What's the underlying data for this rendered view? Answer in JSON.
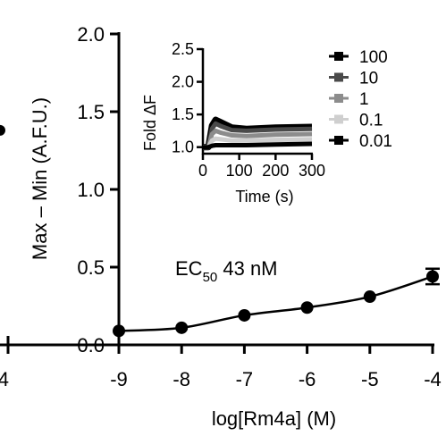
{
  "chart_data": [
    {
      "type": "scatter",
      "title": "",
      "xlabel": "log[Rm4a] (M)",
      "ylabel": "Max – Min (A.F.U.)",
      "xlim": [
        -9,
        -4
      ],
      "ylim": [
        0,
        2.0
      ],
      "x_ticks": [
        "-9",
        "-8",
        "-7",
        "-6",
        "-5",
        "-4"
      ],
      "y_ticks": [
        "0.0",
        "0.5",
        "1.0",
        "1.5",
        "2.0"
      ],
      "points": [
        {
          "x": -9,
          "y": 0.09,
          "err": 0
        },
        {
          "x": -8,
          "y": 0.11,
          "err": 0
        },
        {
          "x": -7,
          "y": 0.19,
          "err": 0
        },
        {
          "x": -6,
          "y": 0.24,
          "err": 0
        },
        {
          "x": -5,
          "y": 0.31,
          "err": 0
        },
        {
          "x": -4,
          "y": 0.44,
          "err": 0.05
        }
      ],
      "annotation": {
        "prefix": "EC",
        "subscript": "50",
        "suffix": " 43 nM"
      },
      "left_edge_fragment": {
        "tick_label": "4",
        "point_y": 1.38
      }
    },
    {
      "type": "line",
      "title": "",
      "xlabel": "Time (s)",
      "ylabel": "Fold ΔF",
      "xlim": [
        0,
        300
      ],
      "ylim": [
        0.9,
        2.5
      ],
      "x_ticks": [
        "0",
        "100",
        "200",
        "300"
      ],
      "y_ticks": [
        "1.0",
        "1.5",
        "2.0",
        "2.5"
      ],
      "series": [
        {
          "name": "100",
          "color": "#000000",
          "x": [
            0,
            15,
            25,
            35,
            50,
            80,
            120,
            200,
            300
          ],
          "y": [
            1.0,
            1.0,
            1.33,
            1.42,
            1.38,
            1.3,
            1.28,
            1.3,
            1.31
          ]
        },
        {
          "name": "10",
          "color": "#4a4a4a",
          "x": [
            0,
            15,
            25,
            35,
            50,
            80,
            120,
            200,
            300
          ],
          "y": [
            1.0,
            1.0,
            1.28,
            1.36,
            1.32,
            1.26,
            1.25,
            1.27,
            1.28
          ]
        },
        {
          "name": "1",
          "color": "#8c8c8c",
          "x": [
            0,
            15,
            25,
            35,
            50,
            80,
            120,
            200,
            300
          ],
          "y": [
            1.0,
            1.0,
            1.2,
            1.25,
            1.22,
            1.18,
            1.17,
            1.19,
            1.2
          ]
        },
        {
          "name": "0.1",
          "color": "#cfcfcf",
          "x": [
            0,
            15,
            25,
            35,
            50,
            80,
            120,
            200,
            300
          ],
          "y": [
            1.0,
            1.0,
            1.1,
            1.13,
            1.12,
            1.1,
            1.1,
            1.11,
            1.12
          ]
        },
        {
          "name": "0.01",
          "color": "#000000",
          "x": [
            0,
            15,
            25,
            35,
            50,
            80,
            120,
            200,
            300
          ],
          "y": [
            1.0,
            1.0,
            1.02,
            1.03,
            1.03,
            1.03,
            1.03,
            1.04,
            1.05
          ]
        }
      ]
    }
  ]
}
